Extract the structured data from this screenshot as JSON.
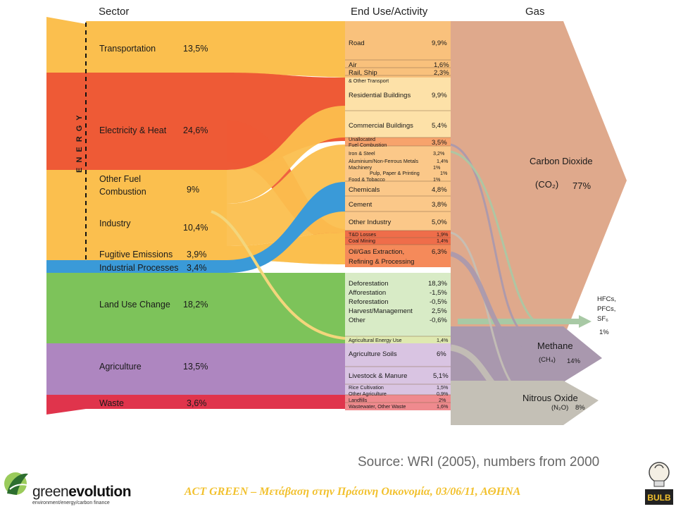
{
  "headers": {
    "sector": "Sector",
    "end_use": "End Use/Activity",
    "gas": "Gas"
  },
  "energy_label": "E N E R G Y",
  "sectors": [
    {
      "name": "Transportation",
      "value": "13,5%"
    },
    {
      "name": "Electricity & Heat",
      "value": "24,6%"
    },
    {
      "name": "Other Fuel",
      "name2": "Combustion",
      "value": "9%"
    },
    {
      "name": "Industry",
      "value": "10,4%"
    },
    {
      "name": "Fugitive Emissions",
      "value": "3,9%"
    },
    {
      "name": "Industrial Processes",
      "value": "3,4%"
    },
    {
      "name": "Land Use Change",
      "value": "18,2%"
    },
    {
      "name": "Agriculture",
      "value": "13,5%"
    },
    {
      "name": "Waste",
      "value": "3,6%"
    }
  ],
  "end_uses": [
    {
      "label": "Road",
      "value": "9,9%"
    },
    {
      "label": "Air",
      "value": "1,6%"
    },
    {
      "label": "Rail, Ship",
      "value": "2,3%"
    },
    {
      "label": "& Other Transport",
      "value": ""
    },
    {
      "label": "Residential Buildings",
      "value": "9,9%"
    },
    {
      "label": "Commercial Buildings",
      "value": "5,4%"
    },
    {
      "label": "Unallocated",
      "value": ""
    },
    {
      "label": "Fuel Combustion",
      "value": "3,5%"
    },
    {
      "label": "Iron & Steel",
      "value": "3,2%"
    },
    {
      "label": "Aluminium/Non-Ferrous Metals",
      "value": "1,4%"
    },
    {
      "label": "Machinery",
      "value": "1%"
    },
    {
      "label": "Pulp, Paper & Printing",
      "value": "1%"
    },
    {
      "label": "Food & Tobacco",
      "value": "1%"
    },
    {
      "label": "Chemicals",
      "value": "4,8%"
    },
    {
      "label": "Cement",
      "value": "3,8%"
    },
    {
      "label": "Other Industry",
      "value": "5,0%"
    },
    {
      "label": "T&D Losses",
      "value": "1,9%"
    },
    {
      "label": "Coal Mining",
      "value": "1,4%"
    },
    {
      "label": "Oil/Gas Extraction,",
      "value": "6,3%"
    },
    {
      "label": "Refining & Processing",
      "value": ""
    },
    {
      "label": "Deforestation",
      "value": "18,3%"
    },
    {
      "label": "Afforestation",
      "value": "-1,5%"
    },
    {
      "label": "Reforestation",
      "value": "-0,5%"
    },
    {
      "label": "Harvest/Management",
      "value": "2,5%"
    },
    {
      "label": "Other",
      "value": "-0,6%"
    },
    {
      "label": "Agricultural Energy Use",
      "value": "1,4%"
    },
    {
      "label": "Agriculture Soils",
      "value": "6%"
    },
    {
      "label": "Livestock & Manure",
      "value": "5,1%"
    },
    {
      "label": "Rice Cultivation",
      "value": "1,5%"
    },
    {
      "label": "Other Agriculture",
      "value": "0,9%"
    },
    {
      "label": "Landfills",
      "value": "2%"
    },
    {
      "label": "Wastewater, Other Waste",
      "value": "1,6%"
    }
  ],
  "gases": {
    "co2": {
      "name": "Carbon Dioxide",
      "formula": "(CO₂)",
      "value": "77%"
    },
    "hfc": {
      "line1": "HFCs,",
      "line2": "PFCs,",
      "line3": "SF₆",
      "value": "1%"
    },
    "ch4": {
      "name": "Methane",
      "formula": "(CH₄)",
      "value": "14%"
    },
    "n2o": {
      "name": "Nitrous Oxide",
      "formula": "(N₂O)",
      "value": "8%"
    }
  },
  "source": "Source: WRI (2005), numbers from 2000",
  "footer": {
    "caption": "ACT GREEN – Μετάβαση στην Πράσινη Οικονομία, 03/06/11, ΑΘΗΝΑ",
    "logo_green": "green",
    "logo_evolution": "evolution",
    "logo_tagline": "environment/energy/carbon finance",
    "logo_right": "BULB"
  },
  "colors": {
    "transport": "#fbbf4e",
    "electricity": "#ee5a36",
    "fuel": "#fbbf4e",
    "industry": "#fbbf4e",
    "fugitive": "#fbbf4e",
    "processes": "#3a9ad8",
    "landuse": "#7dc35a",
    "agriculture": "#ae86c0",
    "waste": "#e0344c",
    "co2": "#dfa98c",
    "ch4": "#a998ae",
    "n2o": "#c4c0b6",
    "hfc": "#a8c9a5"
  }
}
